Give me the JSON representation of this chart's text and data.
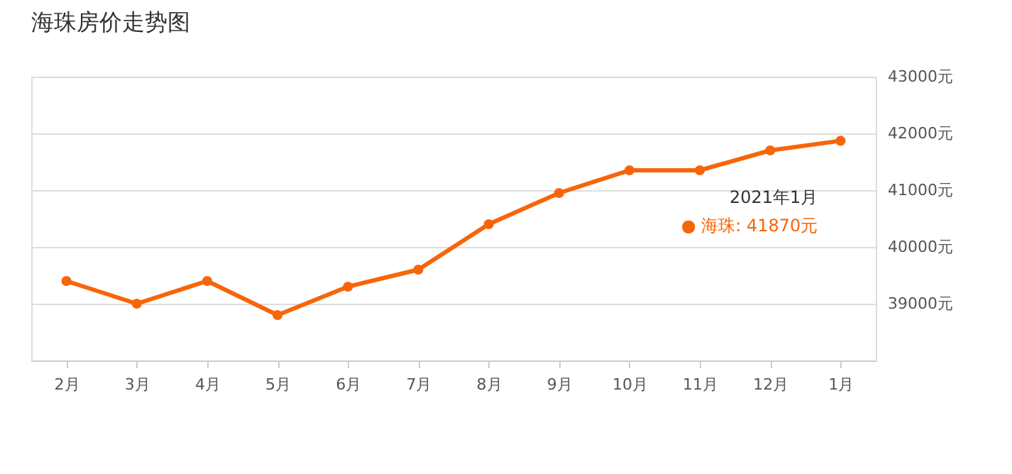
{
  "chart_data": {
    "type": "line",
    "title": "海珠房价走势图",
    "categories": [
      "2月",
      "3月",
      "4月",
      "5月",
      "6月",
      "7月",
      "8月",
      "9月",
      "10月",
      "11月",
      "12月",
      "1月"
    ],
    "series": [
      {
        "color": "#f7650a",
        "values": [
          39400,
          39000,
          39400,
          38800,
          39300,
          39600,
          40400,
          40950,
          41350,
          41350,
          41700,
          41870
        ]
      }
    ],
    "ylim": [
      38000,
      43000
    ],
    "yticks": [
      {
        "value": 39000,
        "label": "39000元"
      },
      {
        "value": 40000,
        "label": "40000元"
      },
      {
        "value": 41000,
        "label": "41000元"
      },
      {
        "value": 42000,
        "label": "42000元"
      },
      {
        "value": 43000,
        "label": "43000元"
      }
    ],
    "grid": "y",
    "marker": "circle",
    "line_style": "solid",
    "annotations": [
      "2021年1月",
      "● 海珠:  41870元"
    ]
  }
}
